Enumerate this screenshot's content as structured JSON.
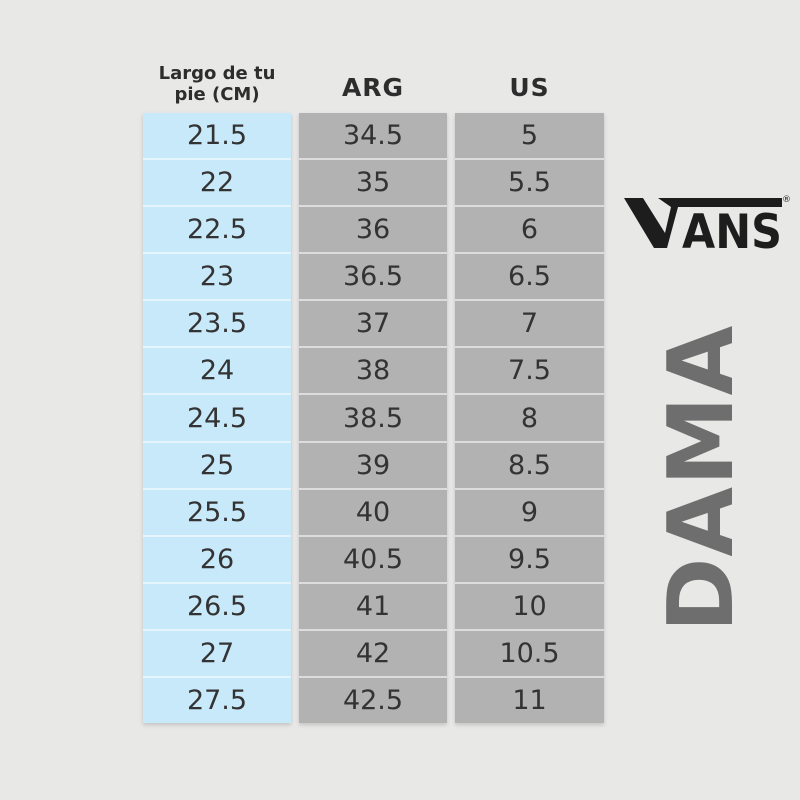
{
  "page": {
    "background_color": "#e8e8e7"
  },
  "brand": {
    "logo_text": "VANS",
    "logo_ans": "ANS",
    "registered_mark": "®",
    "logo_color": "#1d1d1d",
    "category_label": "DAMA",
    "category_color": "#6e6e6e"
  },
  "chart_data": {
    "type": "table",
    "columns": [
      {
        "key": "cm",
        "label": "Largo de tu pie (CM)",
        "label_line1": "Largo de tu",
        "label_line2": "pie (CM)",
        "cell_bg": "#c8e9fa"
      },
      {
        "key": "arg",
        "label": "ARG",
        "cell_bg": "#b3b2b2"
      },
      {
        "key": "us",
        "label": "US",
        "cell_bg": "#b3b2b2"
      }
    ],
    "rows": [
      [
        "21.5",
        "34.5",
        "5"
      ],
      [
        "22",
        "35",
        "5.5"
      ],
      [
        "22.5",
        "36",
        "6"
      ],
      [
        "23",
        "36.5",
        "6.5"
      ],
      [
        "23.5",
        "37",
        "7"
      ],
      [
        "24",
        "38",
        "7.5"
      ],
      [
        "24.5",
        "38.5",
        "8"
      ],
      [
        "25",
        "39",
        "8.5"
      ],
      [
        "25.5",
        "40",
        "9"
      ],
      [
        "26",
        "40.5",
        "9.5"
      ],
      [
        "26.5",
        "41",
        "10"
      ],
      [
        "27",
        "42",
        "10.5"
      ],
      [
        "27.5",
        "42.5",
        "11"
      ]
    ]
  }
}
